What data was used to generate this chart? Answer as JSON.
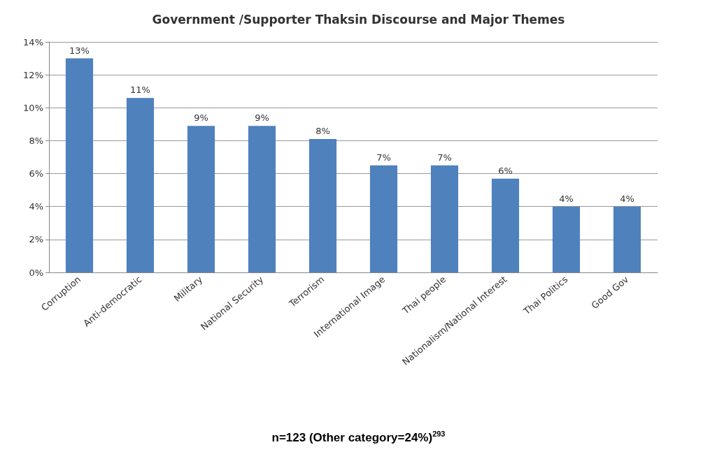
{
  "chart_data": {
    "type": "bar",
    "title": "Government /Supporter Thaksin Discourse and Major Themes",
    "categories": [
      "Corruption",
      "Anti-democratic",
      "Military",
      "National Security",
      "Terrorism",
      "International Image",
      "Thai people",
      "Nationalism/National Interest",
      "Thai Politics",
      "Good Gov"
    ],
    "values": [
      13,
      10.6,
      8.9,
      8.9,
      8.1,
      6.5,
      6.5,
      5.7,
      4.0,
      4.0
    ],
    "value_labels": [
      "13%",
      "11%",
      "9%",
      "9%",
      "8%",
      "7%",
      "7%",
      "6%",
      "4%",
      "4%"
    ],
    "color": "#4f81bd",
    "ylim": [
      0,
      14
    ],
    "yticks": [
      {
        "value": 0,
        "label": "0%"
      },
      {
        "value": 2,
        "label": "2%"
      },
      {
        "value": 4,
        "label": "4%"
      },
      {
        "value": 6,
        "label": "6%"
      },
      {
        "value": 8,
        "label": "8%"
      },
      {
        "value": 10,
        "label": "10%"
      },
      {
        "value": 12,
        "label": "12%"
      },
      {
        "value": 14,
        "label": "14%"
      }
    ],
    "grid": "y",
    "annotations": [
      "n=123 (Other category=24%)$^{293}$"
    ]
  }
}
